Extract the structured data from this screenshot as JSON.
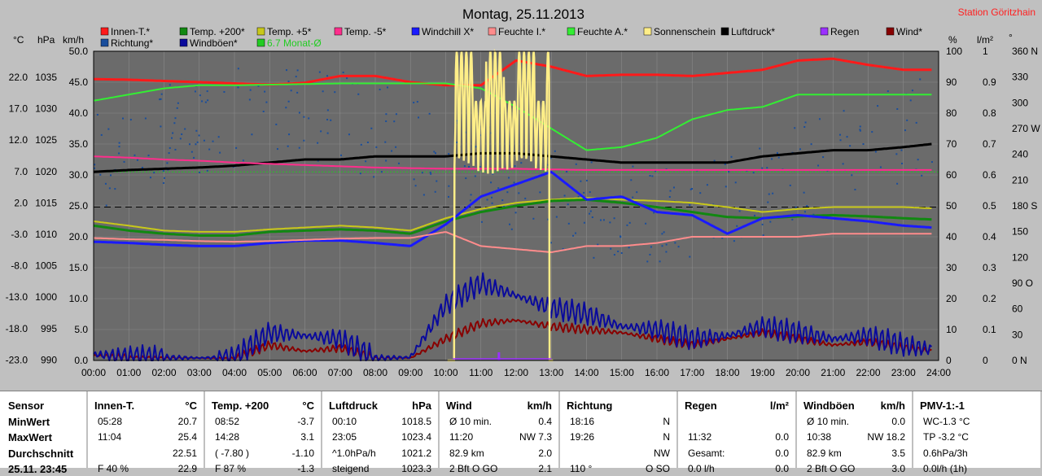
{
  "title": "Montag, 25.11.2013",
  "station": "Station Göritzhain",
  "colors": {
    "plot_bg": "#6b6b6b",
    "innen": "#ff1a1a",
    "temp200": "#118811",
    "temp5": "#c8c81a",
    "temp_minus5": "#ff2d8c",
    "windchill": "#1a1aff",
    "feuchte_i": "#ff8c8c",
    "feuchte_a": "#33ee33",
    "sonne": "#ffee88",
    "luftdruck": "#000000",
    "regen": "#9b30ff",
    "wind": "#880000",
    "richtung": "#1a4e9c",
    "windboeen": "#0a0a9c",
    "monat": "#22cc22"
  },
  "legend": [
    {
      "label": "Innen-T.*",
      "color": "#ff1a1a"
    },
    {
      "label": "Temp. +200*",
      "color": "#118811"
    },
    {
      "label": "Temp. +5*",
      "color": "#c8c81a"
    },
    {
      "label": "Temp. -5*",
      "color": "#ff2d8c"
    },
    {
      "label": "Windchill X*",
      "color": "#1a1aff"
    },
    {
      "label": "Feuchte I.*",
      "color": "#ff8c8c"
    },
    {
      "label": "Feuchte A.*",
      "color": "#33ee33"
    },
    {
      "label": "Sonnenschein",
      "color": "#ffee88"
    },
    {
      "label": "Luftdruck*",
      "color": "#000000"
    },
    {
      "label": "Regen",
      "color": "#9b30ff"
    },
    {
      "label": "Wind*",
      "color": "#880000"
    },
    {
      "label": "Richtung*",
      "color": "#1a4e9c"
    },
    {
      "label": "Windböen*",
      "color": "#0a0a9c"
    },
    {
      "label": "6.7 Monat-Ø",
      "color": "#22cc22"
    }
  ],
  "axis_units": {
    "celsius": "°C",
    "hpa": "hPa",
    "kmh": "km/h",
    "percent": "%",
    "lm2": "l/m²",
    "deg": "°"
  },
  "chart_data": {
    "type": "line",
    "x_ticks": [
      "00:00",
      "01:00",
      "02:00",
      "03:00",
      "04:00",
      "05:00",
      "06:00",
      "07:00",
      "08:00",
      "09:00",
      "10:00",
      "11:00",
      "12:00",
      "13:00",
      "14:00",
      "15:00",
      "16:00",
      "17:00",
      "18:00",
      "19:00",
      "20:00",
      "21:00",
      "22:00",
      "23:00",
      "24:00"
    ],
    "axes": {
      "celsius_ticks": [
        "22.0",
        "17.0",
        "12.0",
        "7.0",
        "2.0",
        "-3.0",
        "-8.0",
        "-13.0",
        "-18.0",
        "-23.0"
      ],
      "hpa_ticks": [
        "1035",
        "1030",
        "1025",
        "1020",
        "1015",
        "1010",
        "1005",
        "1000",
        "995",
        "990"
      ],
      "kmh_ticks": [
        "50.0",
        "45.0",
        "40.0",
        "35.0",
        "30.0",
        "25.0",
        "20.0",
        "15.0",
        "10.0",
        "5.0",
        "0.0"
      ],
      "percent_ticks": [
        "100",
        "90",
        "80",
        "70",
        "60",
        "50",
        "40",
        "30",
        "20",
        "10",
        "0"
      ],
      "lm2_ticks": [
        "1",
        "0.9",
        "0.8",
        "0.7",
        "0.6",
        "0.5",
        "0.4",
        "0.3",
        "0.2",
        "0.1",
        "0"
      ],
      "deg_ticks": [
        "360 N",
        "330",
        "300",
        "270 W",
        "240",
        "210",
        "180 S",
        "150",
        "120",
        "90 O",
        "60",
        "30",
        "0 N"
      ],
      "kmh_range": [
        0,
        50
      ],
      "celsius_range": [
        -23,
        22
      ],
      "hpa_range": [
        990,
        1035
      ],
      "percent_range": [
        0,
        100
      ]
    },
    "x_hours": [
      0,
      1,
      2,
      3,
      4,
      5,
      6,
      7,
      8,
      9,
      10,
      11,
      12,
      13,
      14,
      15,
      16,
      17,
      18,
      19,
      20,
      21,
      22,
      23,
      23.8
    ],
    "series": [
      {
        "name": "Innen-T.*",
        "unit": "kmh_scale",
        "values": [
          45.5,
          45.4,
          45.2,
          45.0,
          44.8,
          44.6,
          44.9,
          46.0,
          46.0,
          45.0,
          44.5,
          44.5,
          48.5,
          47.5,
          46.0,
          46.2,
          46.2,
          46.0,
          46.5,
          47.0,
          48.5,
          48.8,
          47.8,
          47.0,
          47.0
        ]
      },
      {
        "name": "Feuchte A.*",
        "unit": "kmh_scale",
        "values": [
          42.0,
          43.0,
          44.0,
          44.5,
          44.5,
          44.6,
          44.7,
          44.8,
          44.8,
          44.8,
          44.8,
          44.0,
          41.0,
          37.5,
          34.0,
          34.5,
          36.0,
          39.0,
          40.5,
          41.0,
          43.0,
          43.0,
          43.0,
          43.0,
          43.0
        ]
      },
      {
        "name": "Luftdruck*",
        "unit": "kmh_scale",
        "values": [
          30.5,
          30.8,
          31.0,
          31.2,
          31.5,
          32.0,
          32.5,
          32.5,
          33.0,
          33.0,
          33.0,
          33.5,
          33.5,
          33.0,
          32.5,
          32.0,
          32.0,
          32.0,
          32.0,
          33.0,
          33.5,
          34.0,
          34.0,
          34.5,
          35.0
        ]
      },
      {
        "name": "Temp. -5*",
        "unit": "kmh_scale",
        "values": [
          33.0,
          32.8,
          32.5,
          32.3,
          32.0,
          31.8,
          31.6,
          31.4,
          31.2,
          31.1,
          31.0,
          31.0,
          31.0,
          30.9,
          30.8,
          30.8,
          30.8,
          30.8,
          30.8,
          30.8,
          30.8,
          30.8,
          30.8,
          30.8,
          30.8
        ]
      },
      {
        "name": "Temp. +5*",
        "unit": "kmh_scale",
        "values": [
          22.5,
          21.8,
          21.0,
          20.8,
          20.8,
          21.2,
          21.5,
          21.8,
          21.5,
          21.0,
          23.0,
          24.5,
          25.5,
          26.0,
          26.3,
          26.0,
          25.8,
          25.5,
          24.8,
          24.0,
          24.5,
          24.8,
          24.8,
          24.8,
          24.6
        ]
      },
      {
        "name": "Temp. +200*",
        "unit": "kmh_scale",
        "values": [
          21.8,
          21.0,
          20.5,
          20.2,
          20.2,
          20.8,
          21.0,
          21.2,
          21.0,
          20.5,
          22.5,
          24.0,
          25.0,
          25.8,
          26.0,
          25.5,
          24.8,
          24.0,
          23.2,
          23.0,
          23.3,
          23.5,
          23.3,
          23.0,
          22.8
        ]
      },
      {
        "name": "Windchill X*",
        "unit": "kmh_scale",
        "values": [
          19.2,
          19.0,
          18.7,
          18.5,
          18.5,
          19.0,
          19.4,
          19.4,
          19.0,
          18.5,
          22.0,
          26.5,
          28.5,
          30.5,
          26.0,
          26.5,
          24.0,
          23.5,
          20.5,
          23.0,
          23.5,
          23.0,
          22.5,
          21.8,
          21.5
        ]
      },
      {
        "name": "Feuchte I.*",
        "unit": "kmh_scale",
        "values": [
          19.8,
          19.6,
          19.5,
          19.3,
          19.2,
          19.3,
          19.5,
          19.7,
          19.8,
          19.8,
          20.8,
          18.5,
          18.0,
          17.5,
          18.5,
          18.5,
          19.0,
          20.0,
          20.0,
          20.0,
          20.0,
          20.5,
          20.5,
          20.5,
          20.5
        ]
      },
      {
        "name": "Wind*",
        "unit": "kmh_scale",
        "values": [
          0.8,
          0.5,
          0.4,
          0.4,
          0.3,
          2.5,
          1.5,
          2.0,
          0.4,
          0.4,
          3.5,
          6.0,
          6.5,
          5.5,
          5.0,
          4.5,
          3.5,
          2.5,
          3.5,
          4.5,
          3.5,
          2.5,
          3.0,
          2.0,
          1.5
        ]
      },
      {
        "name": "Windböen*",
        "unit": "kmh_scale",
        "values": [
          1.0,
          0.6,
          0.5,
          0.4,
          0.6,
          4.5,
          4.0,
          3.5,
          0.4,
          0.5,
          9.0,
          12.5,
          10.5,
          8.5,
          7.5,
          5.5,
          5.0,
          3.5,
          4.0,
          5.5,
          4.5,
          3.5,
          4.0,
          2.5,
          1.8
        ]
      },
      {
        "name": "Sonnenschein",
        "unit": "kmh_scale",
        "values": [
          0,
          0,
          0,
          0,
          0,
          0,
          0,
          0,
          0,
          0,
          0,
          50,
          38,
          45,
          0,
          0,
          0,
          0,
          0,
          0,
          0,
          0,
          0,
          0,
          0
        ]
      }
    ],
    "reference_lines": [
      {
        "label": "dashed",
        "value": 24.8
      },
      {
        "label": "6.7 Monat-Ø",
        "value": 30.5
      }
    ],
    "rain": [
      {
        "x": 11.5,
        "value": 0.02
      }
    ]
  },
  "table": {
    "row_labels": [
      "Sensor",
      "MinWert",
      "MaxWert",
      "Durchschnitt",
      "25.11. 23:45"
    ],
    "columns": [
      {
        "title": "Innen-T.",
        "unit": "°C",
        "min_t": "05:28",
        "min_v": "20.7",
        "max_t": "11:04",
        "max_v": "25.4",
        "avg_t": "",
        "avg_v": "22.51",
        "cur_t": "F 40 %",
        "cur_v": "22.9"
      },
      {
        "title": "Temp. +200",
        "unit": "°C",
        "min_t": "08:52",
        "min_v": "-3.7",
        "max_t": "14:28",
        "max_v": "3.1",
        "avg_t": "( -7.80 )",
        "avg_v": "-1.10",
        "cur_t": "F 87 %",
        "cur_v": "-1.3"
      },
      {
        "title": "Luftdruck",
        "unit": "hPa",
        "min_t": "00:10",
        "min_v": "1018.5",
        "max_t": "23:05",
        "max_v": "1023.4",
        "avg_t": "^1.0hPa/h",
        "avg_v": "1021.2",
        "cur_t": "steigend",
        "cur_v": "1023.3"
      },
      {
        "title": "Wind",
        "unit": "km/h",
        "min_t": "Ø 10 min.",
        "min_v": "0.4",
        "max_t": "11:20",
        "max_v": "NW 7.3",
        "avg_t": "82.9 km",
        "avg_v": "2.0",
        "cur_t": "2 Bft O GO",
        "cur_v": "2.1"
      },
      {
        "title": "Richtung",
        "unit": "",
        "min_t": "18:16",
        "min_v": "N",
        "max_t": "19:26",
        "max_v": "N",
        "avg_t": "",
        "avg_v": "NW",
        "cur_t": "110 °",
        "cur_v": "O SO"
      },
      {
        "title": "Regen",
        "unit": "l/m²",
        "min_t": "",
        "min_v": "",
        "max_t": "11:32",
        "max_v": "0.0",
        "avg_t": "Gesamt:",
        "avg_v": "0.0",
        "cur_t": "0.0 l/h",
        "cur_v": "0.0"
      },
      {
        "title": "Windböen",
        "unit": "km/h",
        "min_t": "Ø 10 min.",
        "min_v": "0.0",
        "max_t": "10:38",
        "max_v": "NW 18.2",
        "avg_t": "82.9 km",
        "avg_v": "3.5",
        "cur_t": "2 Bft O GO",
        "cur_v": "3.0"
      },
      {
        "title": "PMV-1:-1",
        "unit": "",
        "min_t": "WC-1.3 °C",
        "min_v": "",
        "max_t": "TP -3.2 °C",
        "max_v": "",
        "avg_t": "0.6hPa/3h",
        "avg_v": "",
        "cur_t": "0.0l/h (1h)",
        "cur_v": ""
      }
    ]
  }
}
